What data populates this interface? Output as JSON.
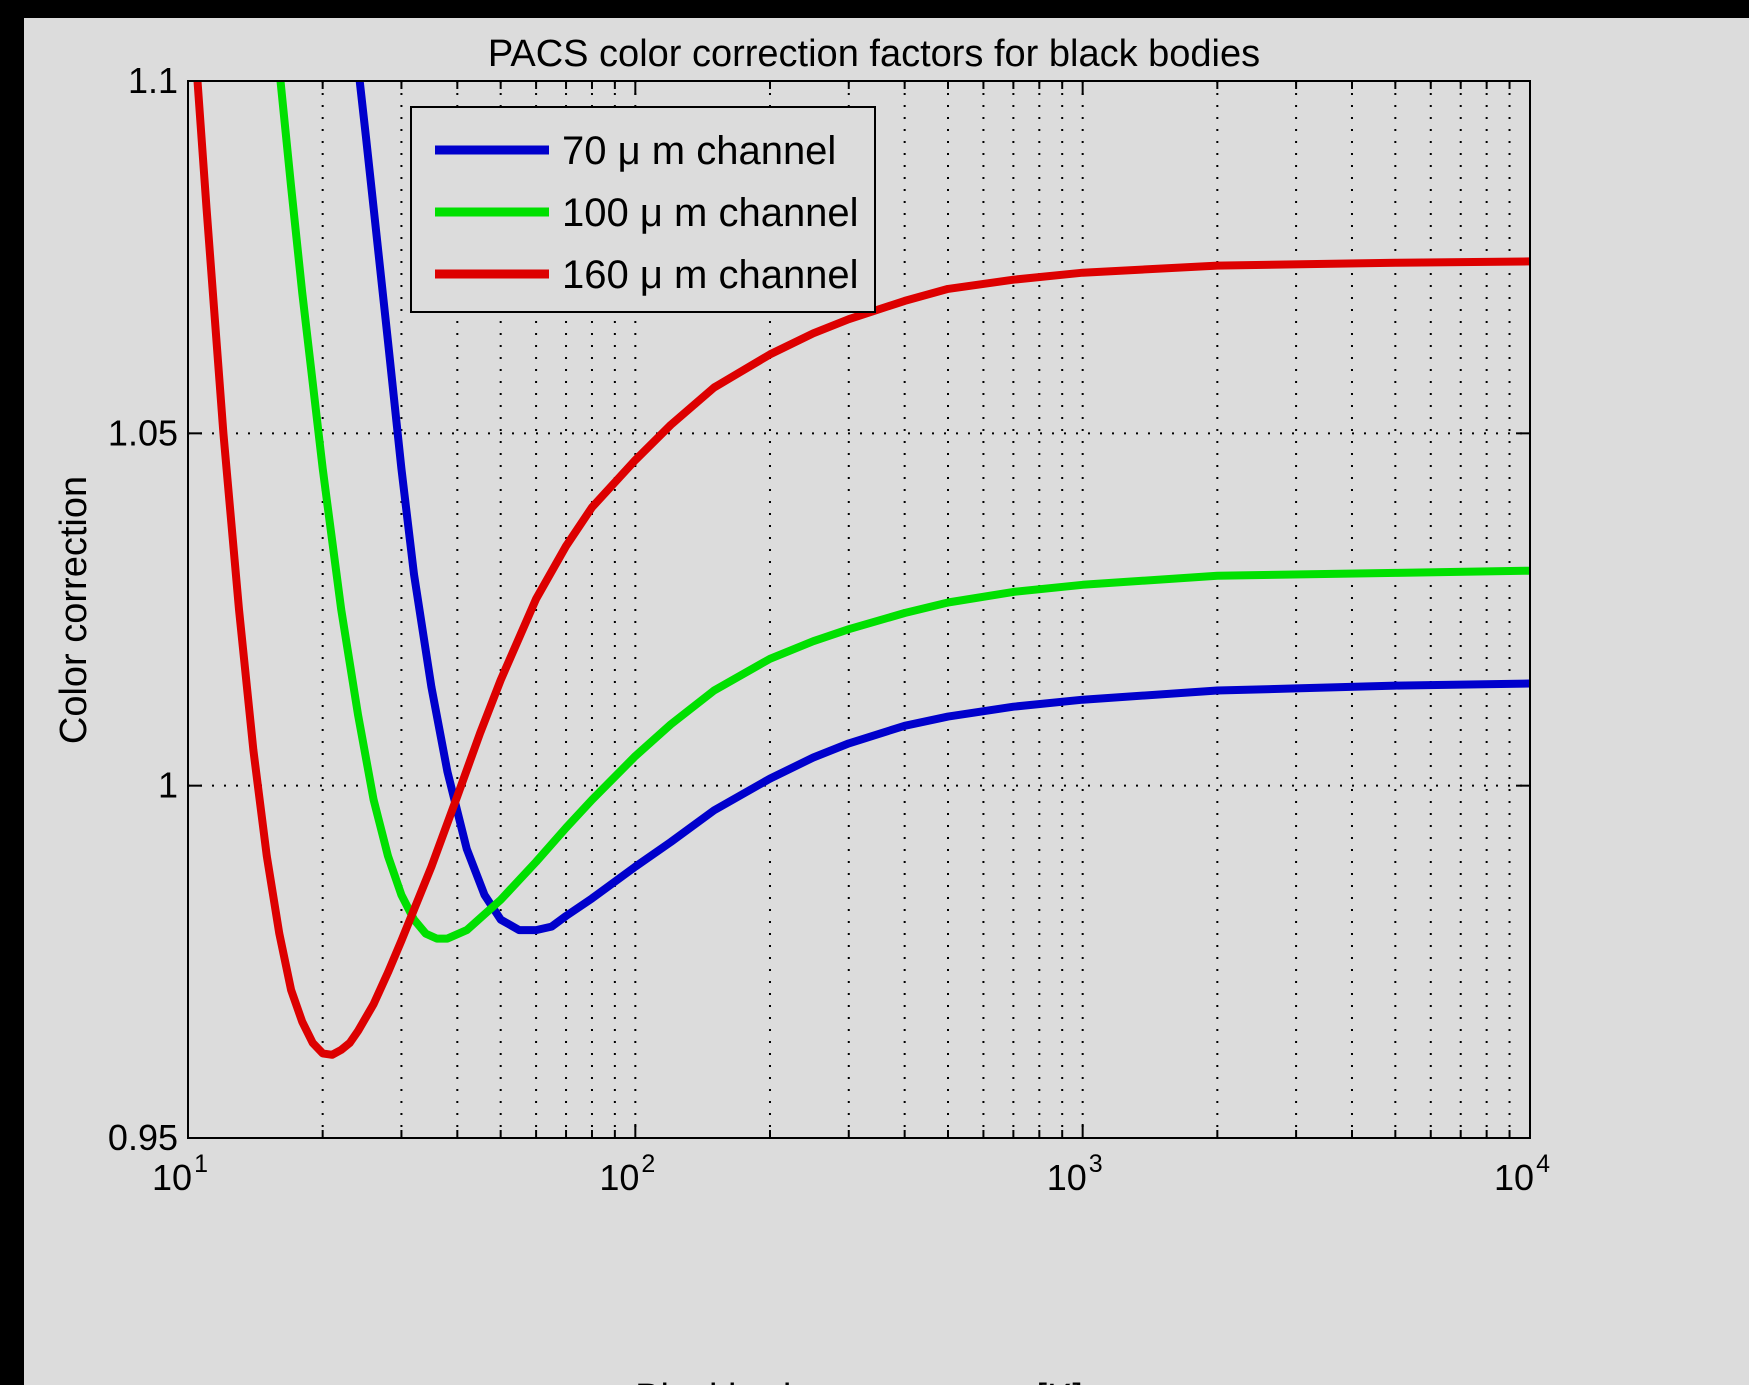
{
  "chart_data": {
    "type": "line",
    "title": "PACS color correction factors for black bodies",
    "xlabel": "Blackbody temperature [K]",
    "ylabel": "Color correction",
    "xscale": "log",
    "xlim": [
      10,
      10000
    ],
    "ylim": [
      0.95,
      1.1
    ],
    "xticks": [
      {
        "value": 10,
        "base": "10",
        "exp": "1"
      },
      {
        "value": 100,
        "base": "10",
        "exp": "2"
      },
      {
        "value": 1000,
        "base": "10",
        "exp": "3"
      },
      {
        "value": 10000,
        "base": "10",
        "exp": "4"
      }
    ],
    "yticks": [
      {
        "value": 0.95,
        "label": "0.95"
      },
      {
        "value": 1.0,
        "label": "1"
      },
      {
        "value": 1.05,
        "label": "1.05"
      },
      {
        "value": 1.1,
        "label": "1.1"
      }
    ],
    "grid": "dotted",
    "legend_position": "top-left",
    "colors": {
      "background": "#dcdcdc",
      "frame": "#000000",
      "series_70": "#0000cc",
      "series_100": "#00e000",
      "series_160": "#dd0000"
    },
    "series": [
      {
        "name": "70 μ m channel",
        "color": "#0000cc",
        "points": [
          [
            24.2,
            1.1
          ],
          [
            25,
            1.092
          ],
          [
            26,
            1.082
          ],
          [
            28,
            1.063
          ],
          [
            30,
            1.045
          ],
          [
            32,
            1.03
          ],
          [
            35,
            1.014
          ],
          [
            38,
            1.002
          ],
          [
            42,
            0.991
          ],
          [
            46,
            0.9845
          ],
          [
            50,
            0.981
          ],
          [
            55,
            0.9795
          ],
          [
            60,
            0.9795
          ],
          [
            65,
            0.98
          ],
          [
            70,
            0.9815
          ],
          [
            80,
            0.984
          ],
          [
            100,
            0.9885
          ],
          [
            120,
            0.992
          ],
          [
            150,
            0.9965
          ],
          [
            200,
            1.001
          ],
          [
            250,
            1.004
          ],
          [
            300,
            1.006
          ],
          [
            400,
            1.0085
          ],
          [
            500,
            1.0098
          ],
          [
            700,
            1.0112
          ],
          [
            1000,
            1.0122
          ],
          [
            2000,
            1.0135
          ],
          [
            3000,
            1.0138
          ],
          [
            5000,
            1.0142
          ],
          [
            10000,
            1.0145
          ]
        ]
      },
      {
        "name": "100 μ m channel",
        "color": "#00e000",
        "points": [
          [
            16.1,
            1.1
          ],
          [
            17,
            1.085
          ],
          [
            18,
            1.07
          ],
          [
            20,
            1.045
          ],
          [
            22,
            1.025
          ],
          [
            24,
            1.01
          ],
          [
            26,
            0.998
          ],
          [
            28,
            0.99
          ],
          [
            30,
            0.9845
          ],
          [
            32,
            0.981
          ],
          [
            34,
            0.979
          ],
          [
            36,
            0.9783
          ],
          [
            38,
            0.9783
          ],
          [
            42,
            0.9795
          ],
          [
            50,
            0.9838
          ],
          [
            60,
            0.9892
          ],
          [
            70,
            0.994
          ],
          [
            80,
            0.998
          ],
          [
            100,
            1.0042
          ],
          [
            120,
            1.0087
          ],
          [
            150,
            1.0135
          ],
          [
            200,
            1.018
          ],
          [
            250,
            1.0205
          ],
          [
            300,
            1.0222
          ],
          [
            400,
            1.0245
          ],
          [
            500,
            1.026
          ],
          [
            700,
            1.0275
          ],
          [
            1000,
            1.0285
          ],
          [
            2000,
            1.0298
          ],
          [
            5000,
            1.0302
          ],
          [
            10000,
            1.0305
          ]
        ]
      },
      {
        "name": "160 μ m channel",
        "color": "#dd0000",
        "points": [
          [
            10.5,
            1.1
          ],
          [
            11,
            1.082
          ],
          [
            12,
            1.05
          ],
          [
            13,
            1.025
          ],
          [
            14,
            1.005
          ],
          [
            15,
            0.99
          ],
          [
            16,
            0.979
          ],
          [
            17,
            0.971
          ],
          [
            18,
            0.9665
          ],
          [
            19,
            0.9635
          ],
          [
            20,
            0.962
          ],
          [
            21,
            0.9618
          ],
          [
            22,
            0.9625
          ],
          [
            23,
            0.9635
          ],
          [
            24,
            0.9652
          ],
          [
            26,
            0.969
          ],
          [
            28,
            0.9735
          ],
          [
            30,
            0.978
          ],
          [
            35,
            0.9885
          ],
          [
            40,
            0.9985
          ],
          [
            45,
            1.0075
          ],
          [
            50,
            1.015
          ],
          [
            60,
            1.0265
          ],
          [
            70,
            1.034
          ],
          [
            80,
            1.0395
          ],
          [
            100,
            1.0462
          ],
          [
            120,
            1.0512
          ],
          [
            150,
            1.0565
          ],
          [
            200,
            1.0612
          ],
          [
            250,
            1.0642
          ],
          [
            300,
            1.0662
          ],
          [
            400,
            1.0688
          ],
          [
            500,
            1.0705
          ],
          [
            700,
            1.0718
          ],
          [
            1000,
            1.0728
          ],
          [
            2000,
            1.0738
          ],
          [
            5000,
            1.0742
          ],
          [
            10000,
            1.0744
          ]
        ]
      }
    ]
  }
}
